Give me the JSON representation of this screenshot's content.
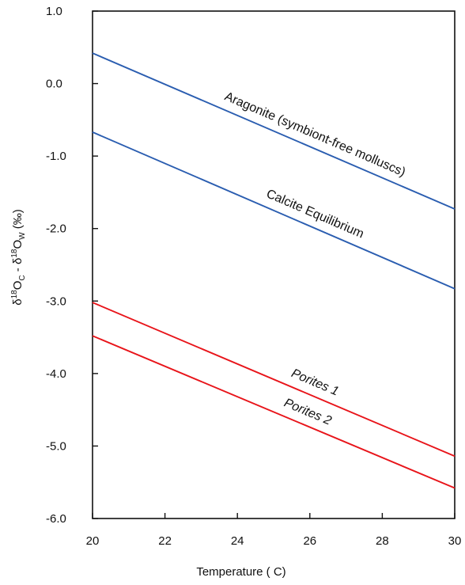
{
  "chart_data": {
    "type": "line",
    "title": "",
    "xlabel": "Temperature ( C)",
    "ylabel": {
      "delta_1": "δ",
      "sup_1": "18",
      "o_1": "O",
      "sub_1": "C",
      "dash": " - ",
      "delta_2": "δ",
      "sup_2": "18",
      "o_2": "O",
      "sub_2": "W",
      "units": " (‰)"
    },
    "xlim": [
      20,
      30
    ],
    "ylim": [
      -6,
      1
    ],
    "x_ticks": [
      20,
      22,
      24,
      26,
      28,
      30
    ],
    "x_tick_labels": [
      "20",
      "22",
      "24",
      "26",
      "28",
      "30"
    ],
    "y_ticks": [
      1,
      0,
      -1,
      -2,
      -3,
      -4,
      -5,
      -6
    ],
    "y_tick_labels": [
      "1.0",
      "0.0",
      "-1.0",
      "-2.0",
      "-3.0",
      "-4.0",
      "-5.0",
      "-6.0"
    ],
    "grid": false,
    "series": [
      {
        "name": "Aragonite (symbiont-free molluscs)",
        "x": [
          20,
          30
        ],
        "y": [
          0.42,
          -1.73
        ],
        "color": "#2a5db0",
        "italic": false
      },
      {
        "name": "Calcite Equilibrium",
        "x": [
          20,
          30
        ],
        "y": [
          -0.67,
          -2.83
        ],
        "color": "#2a5db0",
        "italic": false
      },
      {
        "name": "Porites 1",
        "x": [
          20,
          30
        ],
        "y": [
          -3.02,
          -5.14
        ],
        "color": "#e8141a",
        "italic": true
      },
      {
        "name": "Porites 2",
        "x": [
          20,
          30
        ],
        "y": [
          -3.48,
          -5.58
        ],
        "color": "#e8141a",
        "italic": true
      }
    ]
  }
}
